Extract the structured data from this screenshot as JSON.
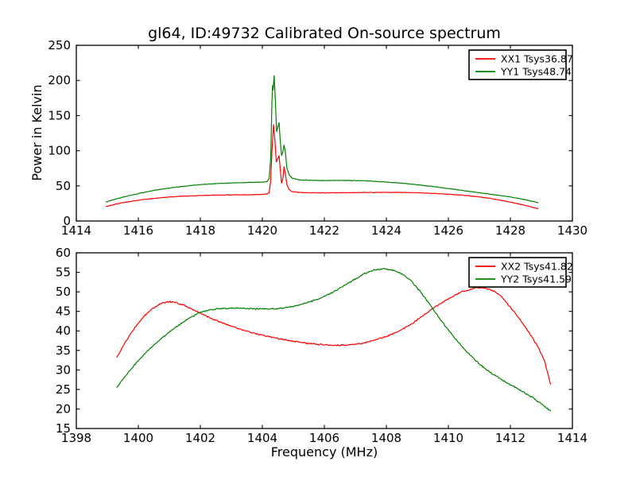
{
  "title": "gl64, ID:49732 Calibrated On-source spectrum",
  "colors": {
    "background": "#ffffff",
    "axis": "#000000",
    "xx_line": "#ff0000",
    "yy_line": "#008000"
  },
  "chart_data": [
    {
      "type": "line",
      "title": "gl64, ID:49732 Calibrated On-source spectrum",
      "xlabel": "",
      "ylabel": "Power in Kelvin",
      "xlim": [
        1414,
        1430
      ],
      "ylim": [
        0,
        250
      ],
      "xticks": [
        1414,
        1416,
        1418,
        1420,
        1422,
        1424,
        1426,
        1428,
        1430
      ],
      "yticks": [
        0,
        50,
        100,
        150,
        200,
        250
      ],
      "grid": false,
      "legend_position": "upper-right",
      "series": [
        {
          "name": "XX1 Tsys36.87",
          "color": "#ff0000",
          "noise": 0.45,
          "points": [
            [
              1414.95,
              20.5
            ],
            [
              1415.3,
              24.5
            ],
            [
              1415.7,
              27.5
            ],
            [
              1416.1,
              30.2
            ],
            [
              1416.5,
              32.2
            ],
            [
              1417,
              34.2
            ],
            [
              1417.5,
              35.4
            ],
            [
              1418,
              36.2
            ],
            [
              1418.5,
              36.8
            ],
            [
              1419,
              37.2
            ],
            [
              1419.5,
              37.4
            ],
            [
              1420,
              37.8
            ],
            [
              1420.15,
              38.3
            ],
            [
              1420.22,
              40.5
            ],
            [
              1420.27,
              58
            ],
            [
              1420.31,
              100
            ],
            [
              1420.36,
              137
            ],
            [
              1420.4,
              118
            ],
            [
              1420.45,
              84
            ],
            [
              1420.5,
              89
            ],
            [
              1420.54,
              93
            ],
            [
              1420.58,
              72
            ],
            [
              1420.62,
              54
            ],
            [
              1420.66,
              60
            ],
            [
              1420.7,
              77
            ],
            [
              1420.74,
              68
            ],
            [
              1420.79,
              52
            ],
            [
              1420.86,
              45
            ],
            [
              1420.95,
              41.8
            ],
            [
              1421.2,
              40.6
            ],
            [
              1421.6,
              40.2
            ],
            [
              1422,
              40.1
            ],
            [
              1422.5,
              40.2
            ],
            [
              1423,
              40.4
            ],
            [
              1423.5,
              40.6
            ],
            [
              1424,
              40.7
            ],
            [
              1424.5,
              40.6
            ],
            [
              1425,
              40.2
            ],
            [
              1425.5,
              39.4
            ],
            [
              1426,
              38.2
            ],
            [
              1426.5,
              36.6
            ],
            [
              1427,
              34.3
            ],
            [
              1427.4,
              31.8
            ],
            [
              1428,
              27
            ],
            [
              1428.5,
              22
            ],
            [
              1428.9,
              17.5
            ]
          ]
        },
        {
          "name": "YY1 Tsys48.74",
          "color": "#008000",
          "noise": 0.45,
          "points": [
            [
              1414.95,
              27
            ],
            [
              1415.3,
              31.5
            ],
            [
              1415.7,
              36
            ],
            [
              1416.1,
              40
            ],
            [
              1416.5,
              43.5
            ],
            [
              1417,
              46.8
            ],
            [
              1417.5,
              49.6
            ],
            [
              1418,
              51.7
            ],
            [
              1418.5,
              53.2
            ],
            [
              1419,
              54.2
            ],
            [
              1419.5,
              54.8
            ],
            [
              1420,
              55.3
            ],
            [
              1420.15,
              56.2
            ],
            [
              1420.22,
              60
            ],
            [
              1420.27,
              90
            ],
            [
              1420.31,
              170
            ],
            [
              1420.33,
              193
            ],
            [
              1420.35,
              187
            ],
            [
              1420.38,
              207
            ],
            [
              1420.42,
              172
            ],
            [
              1420.46,
              127
            ],
            [
              1420.5,
              134
            ],
            [
              1420.54,
              140
            ],
            [
              1420.58,
              112
            ],
            [
              1420.62,
              93
            ],
            [
              1420.66,
              98
            ],
            [
              1420.7,
              108
            ],
            [
              1420.74,
              99
            ],
            [
              1420.79,
              76
            ],
            [
              1420.86,
              66
            ],
            [
              1420.95,
              61
            ],
            [
              1421.2,
              58.5
            ],
            [
              1421.6,
              57.8
            ],
            [
              1422,
              57.6
            ],
            [
              1422.5,
              57.8
            ],
            [
              1423,
              57.6
            ],
            [
              1423.5,
              56.8
            ],
            [
              1424,
              55.5
            ],
            [
              1424.5,
              53.8
            ],
            [
              1425,
              51.5
            ],
            [
              1425.5,
              49
            ],
            [
              1426,
              46.2
            ],
            [
              1426.5,
              43.2
            ],
            [
              1427,
              40.2
            ],
            [
              1427.5,
              37.4
            ],
            [
              1428,
              34.2
            ],
            [
              1428.5,
              30.2
            ],
            [
              1428.9,
              26
            ]
          ]
        }
      ]
    },
    {
      "type": "line",
      "title": "",
      "xlabel": "Frequency (MHz)",
      "ylabel": "",
      "xlim": [
        1398,
        1414
      ],
      "ylim": [
        15,
        60
      ],
      "xticks": [
        1398,
        1400,
        1402,
        1404,
        1406,
        1408,
        1410,
        1412,
        1414
      ],
      "yticks": [
        15,
        20,
        25,
        30,
        35,
        40,
        45,
        50,
        55,
        60
      ],
      "grid": false,
      "legend_position": "upper-right",
      "series": [
        {
          "name": "XX2 Tsys41.82",
          "color": "#ff0000",
          "noise": 0.22,
          "points": [
            [
              1399.3,
              33
            ],
            [
              1399.5,
              36
            ],
            [
              1399.8,
              39.8
            ],
            [
              1400.1,
              43
            ],
            [
              1400.4,
              45.4
            ],
            [
              1400.7,
              46.9
            ],
            [
              1400.95,
              47.5
            ],
            [
              1401.2,
              47.3
            ],
            [
              1401.5,
              46.5
            ],
            [
              1401.8,
              45.3
            ],
            [
              1402.1,
              44.1
            ],
            [
              1402.5,
              42.7
            ],
            [
              1402.9,
              41.5
            ],
            [
              1403.3,
              40.4
            ],
            [
              1403.8,
              39.3
            ],
            [
              1404.3,
              38.4
            ],
            [
              1404.8,
              37.6
            ],
            [
              1405.3,
              37
            ],
            [
              1405.8,
              36.5
            ],
            [
              1406.3,
              36.3
            ],
            [
              1406.8,
              36.4
            ],
            [
              1407.2,
              36.8
            ],
            [
              1407.6,
              37.6
            ],
            [
              1408,
              38.6
            ],
            [
              1408.4,
              39.9
            ],
            [
              1408.8,
              41.7
            ],
            [
              1409.2,
              44
            ],
            [
              1409.6,
              46.3
            ],
            [
              1410,
              48.2
            ],
            [
              1410.4,
              49.9
            ],
            [
              1410.8,
              50.9
            ],
            [
              1411.1,
              51.1
            ],
            [
              1411.4,
              50.5
            ],
            [
              1411.7,
              48.9
            ],
            [
              1412,
              46.1
            ],
            [
              1412.3,
              43
            ],
            [
              1412.6,
              39.6
            ],
            [
              1412.9,
              35.8
            ],
            [
              1413.1,
              32.3
            ],
            [
              1413.3,
              26.3
            ]
          ]
        },
        {
          "name": "YY2 Tsys41.59",
          "color": "#008000",
          "noise": 0.22,
          "points": [
            [
              1399.3,
              25.5
            ],
            [
              1399.6,
              28.6
            ],
            [
              1399.9,
              31.5
            ],
            [
              1400.2,
              34.1
            ],
            [
              1400.5,
              36.4
            ],
            [
              1400.8,
              38.4
            ],
            [
              1401.1,
              40.3
            ],
            [
              1401.4,
              42
            ],
            [
              1401.7,
              43.5
            ],
            [
              1402,
              44.8
            ],
            [
              1402.3,
              45.4
            ],
            [
              1402.6,
              45.7
            ],
            [
              1403,
              45.8
            ],
            [
              1403.4,
              45.8
            ],
            [
              1403.8,
              45.7
            ],
            [
              1404.2,
              45.6
            ],
            [
              1404.6,
              45.8
            ],
            [
              1405,
              46.3
            ],
            [
              1405.4,
              47.1
            ],
            [
              1405.8,
              48.2
            ],
            [
              1406.2,
              49.6
            ],
            [
              1406.6,
              51.4
            ],
            [
              1407,
              53.3
            ],
            [
              1407.3,
              54.7
            ],
            [
              1407.6,
              55.6
            ],
            [
              1407.9,
              55.9
            ],
            [
              1408.2,
              55.6
            ],
            [
              1408.5,
              54.6
            ],
            [
              1408.8,
              52.8
            ],
            [
              1409.1,
              50
            ],
            [
              1409.4,
              46.8
            ],
            [
              1409.7,
              43.4
            ],
            [
              1410,
              40.2
            ],
            [
              1410.3,
              37.3
            ],
            [
              1410.6,
              34.6
            ],
            [
              1410.9,
              32.2
            ],
            [
              1411.2,
              30.2
            ],
            [
              1411.5,
              28.6
            ],
            [
              1411.8,
              27.1
            ],
            [
              1412.1,
              25.8
            ],
            [
              1412.4,
              24.4
            ],
            [
              1412.7,
              23
            ],
            [
              1413,
              21.3
            ],
            [
              1413.3,
              19.4
            ]
          ]
        }
      ]
    }
  ]
}
